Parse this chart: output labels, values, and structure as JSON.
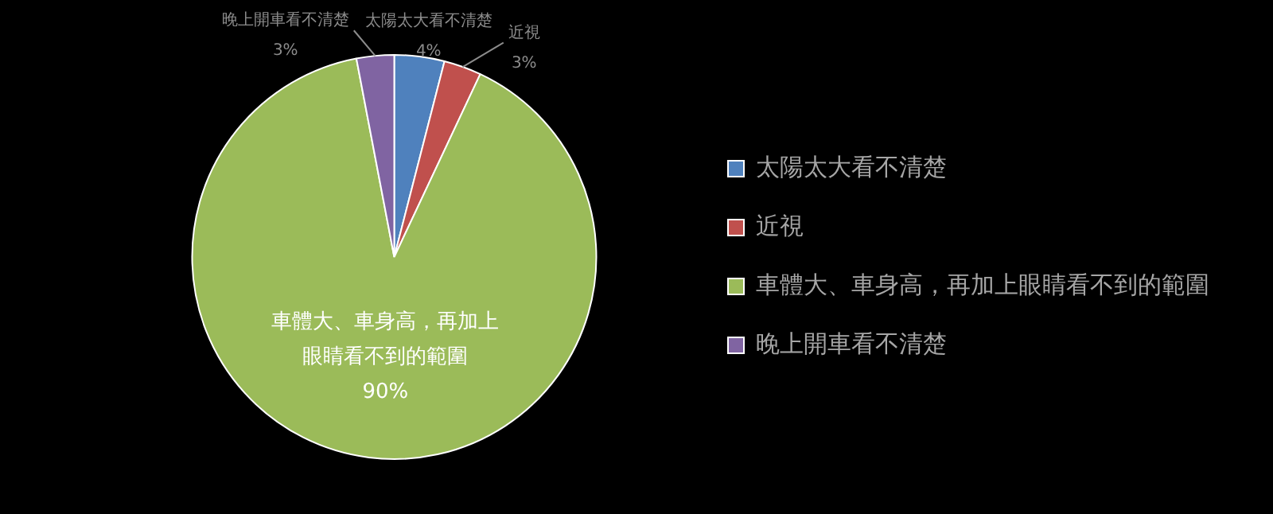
{
  "chart_data": {
    "type": "pie",
    "categories": [
      "太陽太大看不清楚",
      "近視",
      "車體大、車身高，再加上眼睛看不到的範圍",
      "晚上開車看不清楚"
    ],
    "values": [
      4,
      3,
      90,
      3
    ],
    "colors": [
      "#4f81bd",
      "#c0504d",
      "#9bbb59",
      "#8064a2"
    ],
    "value_labels": [
      "4%",
      "3%",
      "90%",
      "3%"
    ],
    "legend": "right"
  }
}
